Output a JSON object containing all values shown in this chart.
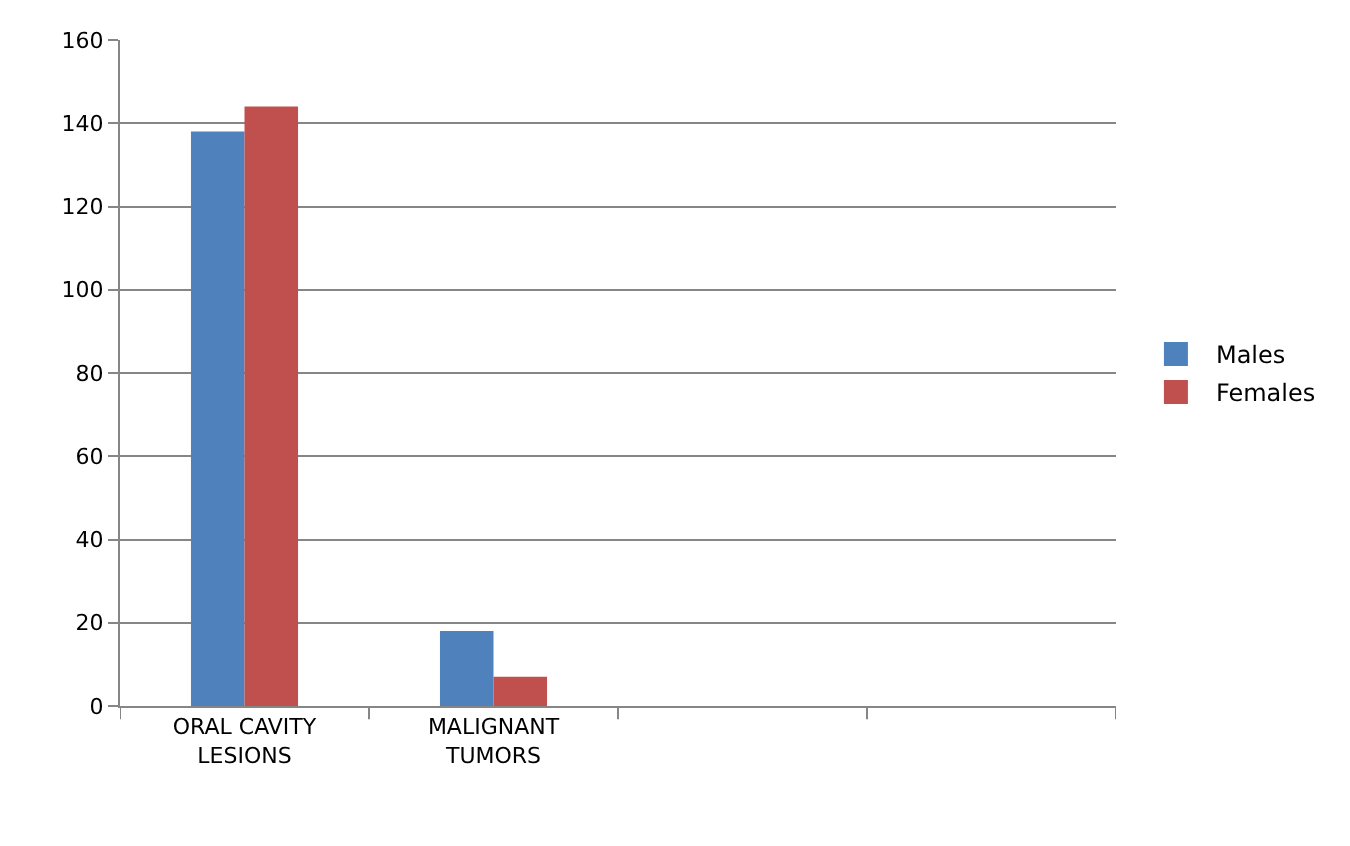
{
  "chart_data": {
    "type": "bar",
    "categories": [
      "ORAL CAVITY\nLESIONS",
      "MALIGNANT\nTUMORS",
      null,
      null
    ],
    "series": [
      {
        "name": "Males",
        "color": "#4f81bd",
        "values": [
          138,
          18,
          null,
          null
        ]
      },
      {
        "name": "Females",
        "color": "#c0504d",
        "values": [
          144,
          7,
          null,
          null
        ]
      }
    ],
    "ylim": [
      0,
      160
    ],
    "yticks": [
      0,
      20,
      40,
      60,
      80,
      100,
      120,
      140,
      160
    ],
    "grid": "y",
    "legend": "right"
  }
}
